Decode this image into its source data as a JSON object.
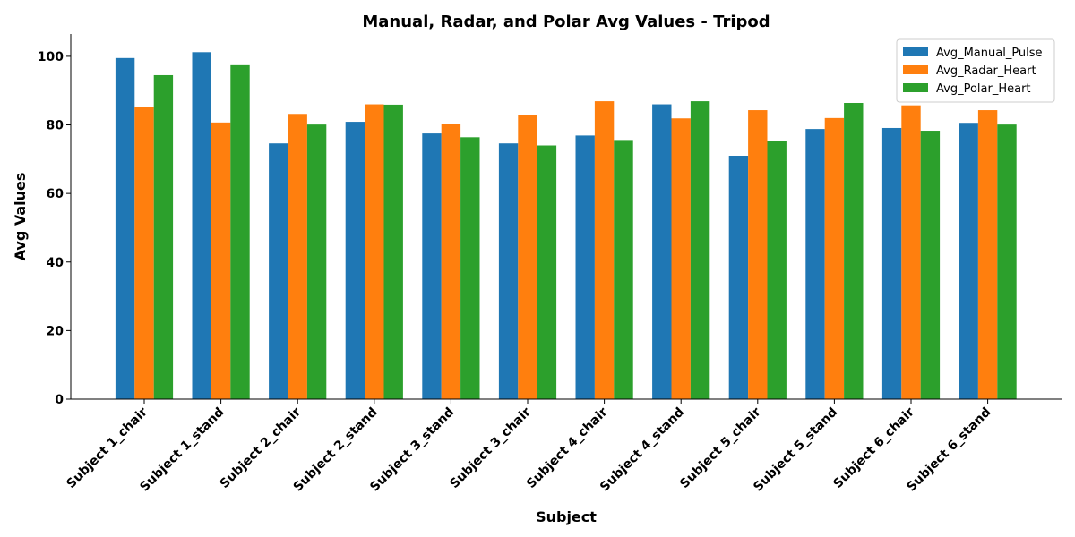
{
  "chart_data": {
    "type": "bar",
    "title": "Manual, Radar, and Polar Avg Values - Tripod",
    "xlabel": "Subject",
    "ylabel": "Avg Values",
    "ylim": [
      0,
      106.5
    ],
    "yticks": [
      0,
      20,
      40,
      60,
      80,
      100
    ],
    "grid": false,
    "legend_position": "top-right",
    "categories": [
      "Subject 1_chair",
      "Subject 1_stand",
      "Subject 2_chair",
      "Subject 2_stand",
      "Subject 3_stand",
      "Subject 3_chair",
      "Subject 4_chair",
      "Subject 4_stand",
      "Subject 5_chair",
      "Subject 5_stand",
      "Subject 6_chair",
      "Subject 6_stand"
    ],
    "series": [
      {
        "name": "Avg_Manual_Pulse",
        "color": "#1f77b4",
        "values": [
          99.5,
          101.2,
          74.6,
          80.9,
          77.5,
          74.6,
          76.9,
          86.0,
          71.0,
          78.8,
          79.1,
          80.6
        ]
      },
      {
        "name": "Avg_Radar_Heart",
        "color": "#ff7f0e",
        "values": [
          85.1,
          80.7,
          83.2,
          86.0,
          80.3,
          82.8,
          86.9,
          81.9,
          84.3,
          82.0,
          85.7,
          84.3
        ]
      },
      {
        "name": "Avg_Polar_Heart",
        "color": "#2ca02c",
        "values": [
          94.5,
          97.4,
          80.1,
          85.9,
          76.4,
          74.0,
          75.6,
          86.9,
          75.4,
          86.4,
          78.3,
          80.1
        ]
      }
    ]
  }
}
